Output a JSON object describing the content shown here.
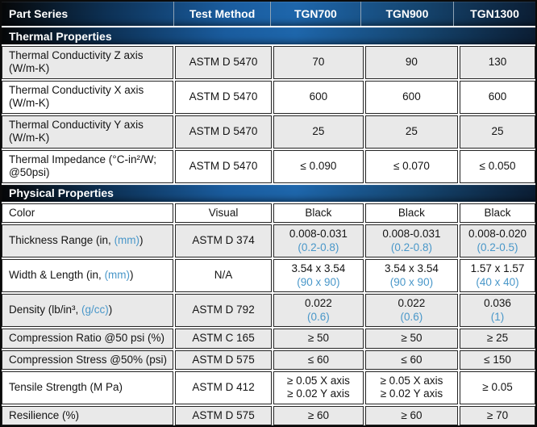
{
  "accent_color": "#4997c9",
  "header_gradient_color": "#1a5c9e",
  "shaded_row_color": "#e9e9e9",
  "header": {
    "columns": [
      "Part Series",
      "Test Method",
      "TGN700",
      "TGN900",
      "TGN1300"
    ]
  },
  "sections": [
    {
      "title": "Thermal Properties",
      "rows": [
        {
          "shaded": true,
          "label_parts": [
            {
              "text": "Thermal Conductivity Z axis (W/m-K)"
            }
          ],
          "method": "ASTM D 5470",
          "values": [
            [
              {
                "text": "70"
              }
            ],
            [
              {
                "text": "90"
              }
            ],
            [
              {
                "text": "130"
              }
            ]
          ]
        },
        {
          "shaded": false,
          "label_parts": [
            {
              "text": "Thermal Conductivity X axis (W/m-K)"
            }
          ],
          "method": "ASTM D 5470",
          "values": [
            [
              {
                "text": "600"
              }
            ],
            [
              {
                "text": "600"
              }
            ],
            [
              {
                "text": "600"
              }
            ]
          ]
        },
        {
          "shaded": true,
          "label_parts": [
            {
              "text": "Thermal Conductivity Y axis (W/m-K)"
            }
          ],
          "method": "ASTM D 5470",
          "values": [
            [
              {
                "text": "25"
              }
            ],
            [
              {
                "text": "25"
              }
            ],
            [
              {
                "text": "25"
              }
            ]
          ]
        },
        {
          "shaded": false,
          "label_parts": [
            {
              "text": "Thermal Impedance (°C-in²/W; @50psi)"
            }
          ],
          "method": "ASTM D 5470",
          "values": [
            [
              {
                "text": "≤ 0.090"
              }
            ],
            [
              {
                "text": "≤ 0.070"
              }
            ],
            [
              {
                "text": "≤ 0.050"
              }
            ]
          ]
        }
      ]
    },
    {
      "title": "Physical Properties",
      "rows": [
        {
          "shaded": false,
          "label_parts": [
            {
              "text": "Color"
            }
          ],
          "method": "Visual",
          "values": [
            [
              {
                "text": "Black"
              }
            ],
            [
              {
                "text": "Black"
              }
            ],
            [
              {
                "text": "Black"
              }
            ]
          ]
        },
        {
          "shaded": true,
          "label_parts": [
            {
              "text": "Thickness Range (in, "
            },
            {
              "text": "(mm)",
              "accent": true
            },
            {
              "text": ")"
            }
          ],
          "method": "ASTM D 374",
          "values": [
            [
              {
                "text": "0.008-0.031"
              },
              {
                "text": "(0.2-0.8)",
                "accent": true
              }
            ],
            [
              {
                "text": "0.008-0.031"
              },
              {
                "text": "(0.2-0.8)",
                "accent": true
              }
            ],
            [
              {
                "text": "0.008-0.020"
              },
              {
                "text": "(0.2-0.5)",
                "accent": true
              }
            ]
          ]
        },
        {
          "shaded": false,
          "label_parts": [
            {
              "text": "Width & Length (in, "
            },
            {
              "text": "(mm)",
              "accent": true
            },
            {
              "text": ")"
            }
          ],
          "method": "N/A",
          "values": [
            [
              {
                "text": "3.54 x 3.54"
              },
              {
                "text": "(90 x 90)",
                "accent": true
              }
            ],
            [
              {
                "text": "3.54 x 3.54"
              },
              {
                "text": "(90 x 90)",
                "accent": true
              }
            ],
            [
              {
                "text": "1.57 x 1.57"
              },
              {
                "text": "(40 x 40)",
                "accent": true
              }
            ]
          ]
        },
        {
          "shaded": true,
          "label_parts": [
            {
              "text": "Density (lb/in³, "
            },
            {
              "text": "(g/cc)",
              "accent": true
            },
            {
              "text": ")"
            }
          ],
          "method": "ASTM D 792",
          "values": [
            [
              {
                "text": "0.022"
              },
              {
                "text": "(0.6)",
                "accent": true
              }
            ],
            [
              {
                "text": "0.022"
              },
              {
                "text": "(0.6)",
                "accent": true
              }
            ],
            [
              {
                "text": "0.036"
              },
              {
                "text": "(1)",
                "accent": true
              }
            ]
          ]
        },
        {
          "shaded": true,
          "label_parts": [
            {
              "text": "Compression Ratio @50 psi (%)"
            }
          ],
          "method": "ASTM C 165",
          "values": [
            [
              {
                "text": "≥ 50"
              }
            ],
            [
              {
                "text": "≥ 50"
              }
            ],
            [
              {
                "text": "≥ 25"
              }
            ]
          ]
        },
        {
          "shaded": true,
          "label_parts": [
            {
              "text": "Compression Stress @50% (psi)"
            }
          ],
          "method": "ASTM D 575",
          "values": [
            [
              {
                "text": "≤ 60"
              }
            ],
            [
              {
                "text": "≤ 60"
              }
            ],
            [
              {
                "text": "≤ 150"
              }
            ]
          ]
        },
        {
          "shaded": false,
          "label_parts": [
            {
              "text": "Tensile Strength (M Pa)"
            }
          ],
          "method": "ASTM D 412",
          "values": [
            [
              {
                "text": "≥ 0.05 X axis"
              },
              {
                "text": "≥ 0.02 Y axis"
              }
            ],
            [
              {
                "text": "≥ 0.05 X axis"
              },
              {
                "text": "≥ 0.02 Y axis"
              }
            ],
            [
              {
                "text": "≥ 0.05"
              }
            ]
          ]
        },
        {
          "shaded": true,
          "label_parts": [
            {
              "text": "Resilience (%)"
            }
          ],
          "method": "ASTM D 575",
          "values": [
            [
              {
                "text": "≥ 60"
              }
            ],
            [
              {
                "text": "≥ 60"
              }
            ],
            [
              {
                "text": "≥ 70"
              }
            ]
          ]
        }
      ]
    }
  ]
}
